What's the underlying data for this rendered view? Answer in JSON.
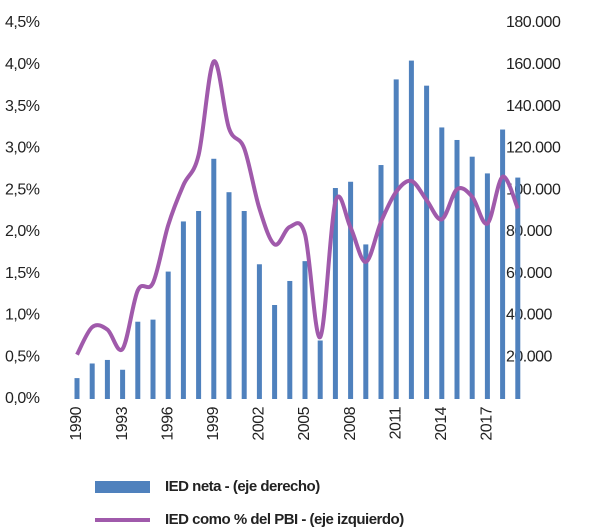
{
  "chart_data": {
    "type": "bar_line",
    "categories": [
      "1990",
      null,
      null,
      "1993",
      null,
      null,
      "1996",
      null,
      null,
      "1999",
      null,
      null,
      "2002",
      null,
      null,
      "2005",
      null,
      null,
      "2008",
      null,
      null,
      "2011",
      null,
      null,
      "2014",
      null,
      null,
      "2017",
      null,
      null
    ],
    "series": [
      {
        "name": "IED neta  - (eje derecho)",
        "type": "bar",
        "axis": "y2",
        "color": "#4f81bd",
        "values": [
          10000,
          17000,
          18700,
          14000,
          37000,
          38000,
          61000,
          85000,
          90000,
          115000,
          99000,
          90000,
          64500,
          45000,
          56500,
          66000,
          28000,
          101000,
          104000,
          74000,
          112000,
          153000,
          162000,
          150000,
          130000,
          124000,
          116000,
          108000,
          129000,
          106000
        ]
      },
      {
        "name": "IED como % del PBI  - (eje izquierdo)",
        "type": "line",
        "axis": "y",
        "color": "#a05aab",
        "values": [
          0.53,
          0.86,
          0.83,
          0.6,
          1.3,
          1.39,
          2.08,
          2.56,
          2.92,
          4.04,
          3.24,
          3.0,
          2.28,
          1.85,
          2.06,
          1.97,
          0.74,
          2.36,
          2.05,
          1.64,
          2.12,
          2.48,
          2.61,
          2.38,
          2.15,
          2.51,
          2.42,
          2.1,
          2.66,
          2.28
        ]
      }
    ],
    "ylim": [
      0,
      4.5
    ],
    "yticks": [
      {
        "value": 0,
        "label": "0,0%"
      },
      {
        "value": 0.5,
        "label": "0,5%"
      },
      {
        "value": 1,
        "label": "1,0%"
      },
      {
        "value": 1.5,
        "label": "1,5%"
      },
      {
        "value": 2,
        "label": "2,0%"
      },
      {
        "value": 2.5,
        "label": "2,5%"
      },
      {
        "value": 3,
        "label": "3,0%"
      },
      {
        "value": 3.5,
        "label": "3,5%"
      },
      {
        "value": 4,
        "label": "4,0%"
      },
      {
        "value": 4.5,
        "label": "4,5%"
      }
    ],
    "y2lim": [
      0,
      180000
    ],
    "y2ticks": [
      {
        "value": 20000,
        "label": "20.000"
      },
      {
        "value": 40000,
        "label": "40.000"
      },
      {
        "value": 60000,
        "label": "60.000"
      },
      {
        "value": 80000,
        "label": "80.000"
      },
      {
        "value": 100000,
        "label": "100.000"
      },
      {
        "value": 120000,
        "label": "120.000"
      },
      {
        "value": 140000,
        "label": "140.000"
      },
      {
        "value": 160000,
        "label": "160.000"
      },
      {
        "value": 180000,
        "label": "180.000"
      }
    ]
  }
}
